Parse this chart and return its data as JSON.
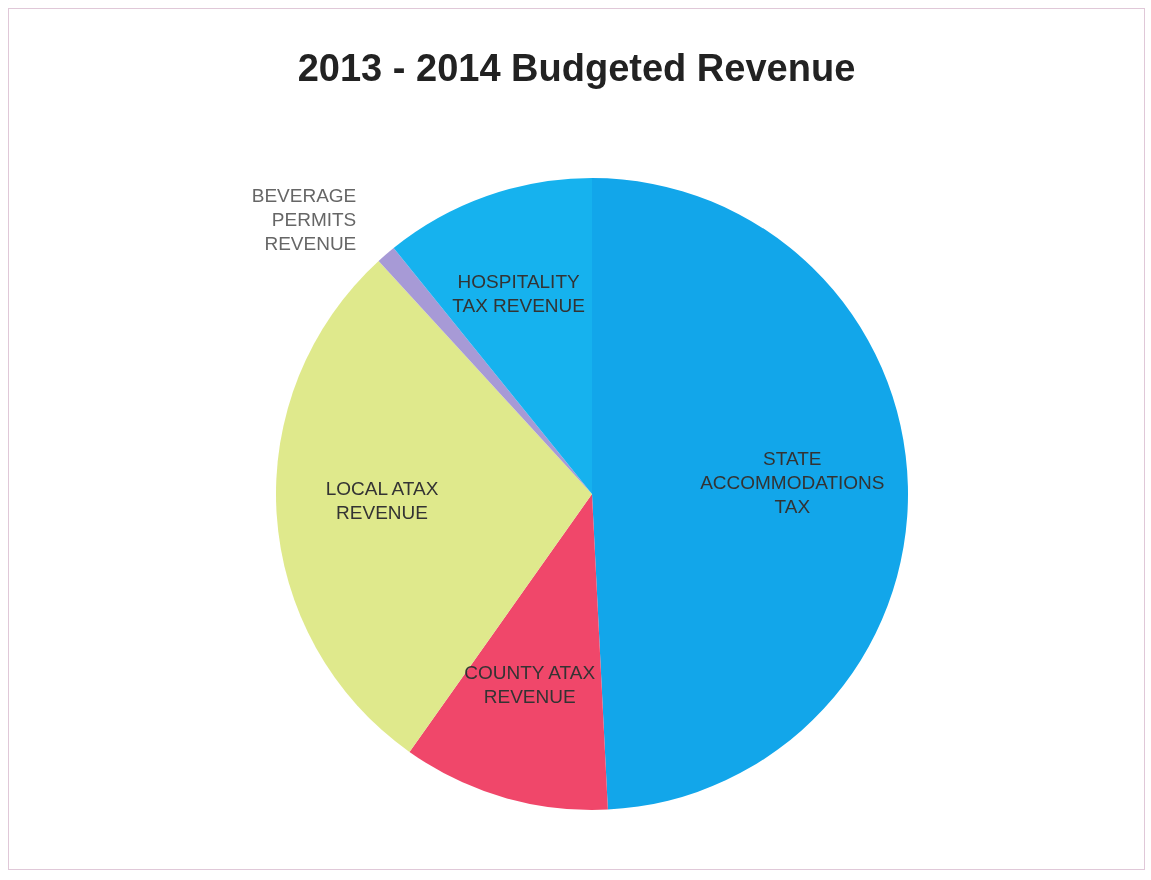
{
  "chart_data": {
    "type": "pie",
    "title": "2013 - 2014 Budgeted Revenue",
    "categories": [
      "STATE ACCOMMODATIONS TAX",
      "COUNTY ATAX REVENUE",
      "LOCAL ATAX REVENUE",
      "BEVERAGE PERMITS REVENUE",
      "HOSPITALITY TAX REVENUE"
    ],
    "values": [
      49.2,
      10.6,
      28.4,
      1,
      10.8
    ],
    "colors": [
      "#12a6ea",
      "#f0476a",
      "#dfe98c",
      "#a79ad6",
      "#16b2ee"
    ]
  }
}
